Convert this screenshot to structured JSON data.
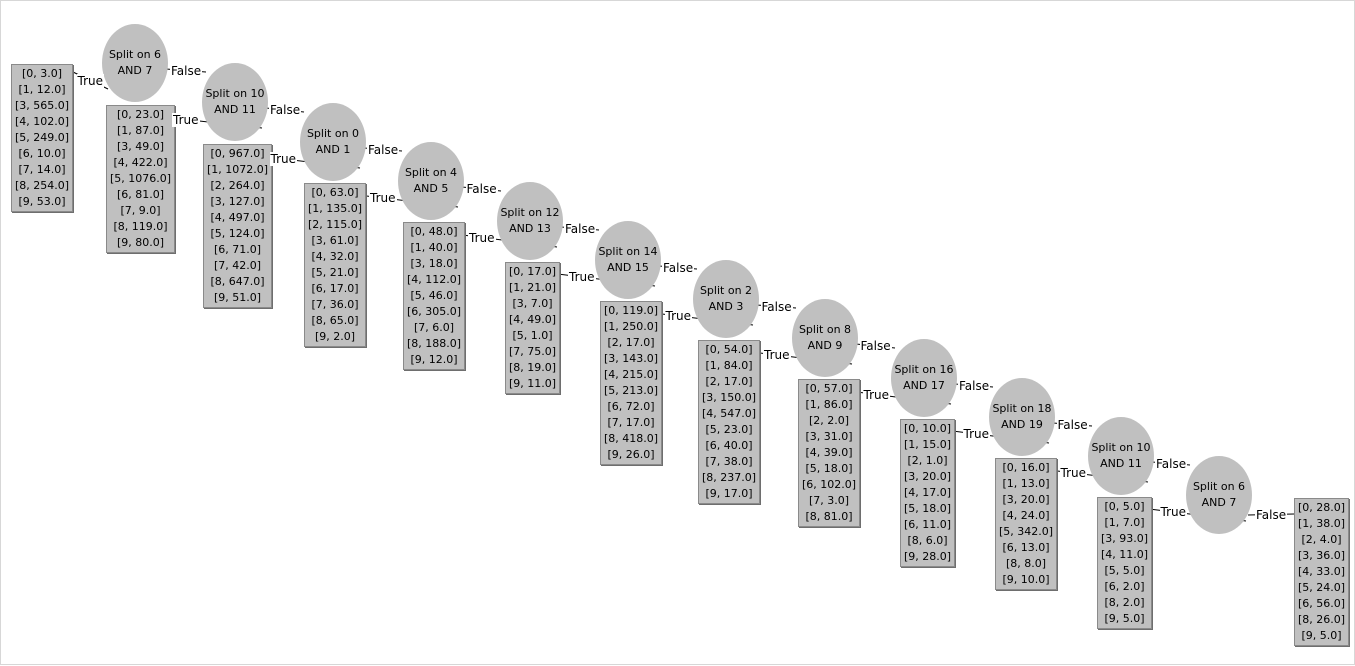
{
  "tree": {
    "nodes": [
      {
        "id": "n1",
        "label": "Split on 6 AND 7"
      },
      {
        "id": "n2",
        "label": "Split on 10 AND 11"
      },
      {
        "id": "n3",
        "label": "Split on 0 AND 1"
      },
      {
        "id": "n4",
        "label": "Split on 4 AND 5"
      },
      {
        "id": "n5",
        "label": "Split on 12 AND 13"
      },
      {
        "id": "n6",
        "label": "Split on 14 AND 15"
      },
      {
        "id": "n7",
        "label": "Split on 2 AND 3"
      },
      {
        "id": "n8",
        "label": "Split on 8 AND 9"
      },
      {
        "id": "n9",
        "label": "Split on 16 AND 17"
      },
      {
        "id": "n10",
        "label": "Split on 18 AND 19"
      },
      {
        "id": "n11",
        "label": "Split on 10 AND 11"
      },
      {
        "id": "n12",
        "label": "Split on 6 AND 7"
      }
    ],
    "leaves": [
      {
        "id": "L0",
        "lines": [
          "[0, 3.0]",
          "[1, 12.0]",
          "[3, 565.0]",
          "[4, 102.0]",
          "[5, 249.0]",
          "[6, 10.0]",
          "[7, 14.0]",
          "[8, 254.0]",
          "[9, 53.0]"
        ]
      },
      {
        "id": "L1",
        "lines": [
          "[0, 23.0]",
          "[1, 87.0]",
          "[3, 49.0]",
          "[4, 422.0]",
          "[5, 1076.0]",
          "[6, 81.0]",
          "[7, 9.0]",
          "[8, 119.0]",
          "[9, 80.0]"
        ]
      },
      {
        "id": "L2",
        "lines": [
          "[0, 967.0]",
          "[1, 1072.0]",
          "[2, 264.0]",
          "[3, 127.0]",
          "[4, 497.0]",
          "[5, 124.0]",
          "[6, 71.0]",
          "[7, 42.0]",
          "[8, 647.0]",
          "[9, 51.0]"
        ]
      },
      {
        "id": "L3",
        "lines": [
          "[0, 63.0]",
          "[1, 135.0]",
          "[2, 115.0]",
          "[3, 61.0]",
          "[4, 32.0]",
          "[5, 21.0]",
          "[6, 17.0]",
          "[7, 36.0]",
          "[8, 65.0]",
          "[9, 2.0]"
        ]
      },
      {
        "id": "L4",
        "lines": [
          "[0, 48.0]",
          "[1, 40.0]",
          "[3, 18.0]",
          "[4, 112.0]",
          "[5, 46.0]",
          "[6, 305.0]",
          "[7, 6.0]",
          "[8, 188.0]",
          "[9, 12.0]"
        ]
      },
      {
        "id": "L5",
        "lines": [
          "[0, 17.0]",
          "[1, 21.0]",
          "[3, 7.0]",
          "[4, 49.0]",
          "[5, 1.0]",
          "[7, 75.0]",
          "[8, 19.0]",
          "[9, 11.0]"
        ]
      },
      {
        "id": "L6",
        "lines": [
          "[0, 119.0]",
          "[1, 250.0]",
          "[2, 17.0]",
          "[3, 143.0]",
          "[4, 215.0]",
          "[5, 213.0]",
          "[6, 72.0]",
          "[7, 17.0]",
          "[8, 418.0]",
          "[9, 26.0]"
        ]
      },
      {
        "id": "L7",
        "lines": [
          "[0, 54.0]",
          "[1, 84.0]",
          "[2, 17.0]",
          "[3, 150.0]",
          "[4, 547.0]",
          "[5, 23.0]",
          "[6, 40.0]",
          "[7, 38.0]",
          "[8, 237.0]",
          "[9, 17.0]"
        ]
      },
      {
        "id": "L8",
        "lines": [
          "[0, 57.0]",
          "[1, 86.0]",
          "[2, 2.0]",
          "[3, 31.0]",
          "[4, 39.0]",
          "[5, 18.0]",
          "[6, 102.0]",
          "[7, 3.0]",
          "[8, 81.0]"
        ]
      },
      {
        "id": "L9",
        "lines": [
          "[0, 10.0]",
          "[1, 15.0]",
          "[2, 1.0]",
          "[3, 20.0]",
          "[4, 17.0]",
          "[5, 18.0]",
          "[6, 11.0]",
          "[8, 6.0]",
          "[9, 28.0]"
        ]
      },
      {
        "id": "L10",
        "lines": [
          "[0, 16.0]",
          "[1, 13.0]",
          "[3, 20.0]",
          "[4, 24.0]",
          "[5, 342.0]",
          "[6, 13.0]",
          "[8, 8.0]",
          "[9, 10.0]"
        ]
      },
      {
        "id": "L11",
        "lines": [
          "[0, 5.0]",
          "[1, 7.0]",
          "[3, 93.0]",
          "[4, 11.0]",
          "[5, 5.0]",
          "[6, 2.0]",
          "[8, 2.0]",
          "[9, 5.0]"
        ]
      },
      {
        "id": "L12",
        "lines": [
          "[0, 28.0]",
          "[1, 38.0]",
          "[2, 4.0]",
          "[3, 36.0]",
          "[4, 33.0]",
          "[5, 24.0]",
          "[6, 56.0]",
          "[8, 26.0]",
          "[9, 5.0]"
        ]
      }
    ],
    "edges": [
      {
        "from": "n1",
        "to": "L0",
        "label": "True"
      },
      {
        "from": "n1",
        "to": "n2",
        "label": "False"
      },
      {
        "from": "n2",
        "to": "L1",
        "label": "True"
      },
      {
        "from": "n2",
        "to": "n3",
        "label": "False"
      },
      {
        "from": "n3",
        "to": "L2",
        "label": "True"
      },
      {
        "from": "n3",
        "to": "n4",
        "label": "False"
      },
      {
        "from": "n4",
        "to": "L3",
        "label": "True"
      },
      {
        "from": "n4",
        "to": "n5",
        "label": "False"
      },
      {
        "from": "n5",
        "to": "L4",
        "label": "True"
      },
      {
        "from": "n5",
        "to": "n6",
        "label": "False"
      },
      {
        "from": "n6",
        "to": "L5",
        "label": "True"
      },
      {
        "from": "n6",
        "to": "n7",
        "label": "False"
      },
      {
        "from": "n7",
        "to": "L6",
        "label": "True"
      },
      {
        "from": "n7",
        "to": "n8",
        "label": "False"
      },
      {
        "from": "n8",
        "to": "L7",
        "label": "True"
      },
      {
        "from": "n8",
        "to": "n9",
        "label": "False"
      },
      {
        "from": "n9",
        "to": "L8",
        "label": "True"
      },
      {
        "from": "n9",
        "to": "n10",
        "label": "False"
      },
      {
        "from": "n10",
        "to": "L9",
        "label": "True"
      },
      {
        "from": "n10",
        "to": "n11",
        "label": "False"
      },
      {
        "from": "n11",
        "to": "L10",
        "label": "True"
      },
      {
        "from": "n11",
        "to": "n12",
        "label": "False"
      },
      {
        "from": "n12",
        "to": "L11",
        "label": "True"
      },
      {
        "from": "n12",
        "to": "L12",
        "label": "False"
      }
    ]
  }
}
